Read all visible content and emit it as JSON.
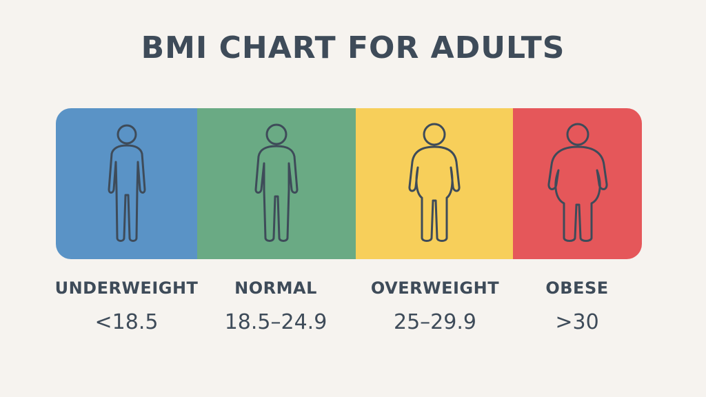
{
  "title": "BMI CHART FOR ADULTS",
  "categories": [
    {
      "name": "UNDERWEIGHT",
      "range": "<18.5",
      "color": "#5a93c6",
      "icon": "thin-person-icon"
    },
    {
      "name": "NORMAL",
      "range": "18.5–24.9",
      "color": "#6aaa84",
      "icon": "normal-person-icon"
    },
    {
      "name": "OVERWEIGHT",
      "range": "25–29.9",
      "color": "#f7cf5a",
      "icon": "overweight-person-icon"
    },
    {
      "name": "OBESE",
      "range": ">30",
      "color": "#e5575a",
      "icon": "obese-person-icon"
    }
  ],
  "outline_color": "#3e4b59"
}
